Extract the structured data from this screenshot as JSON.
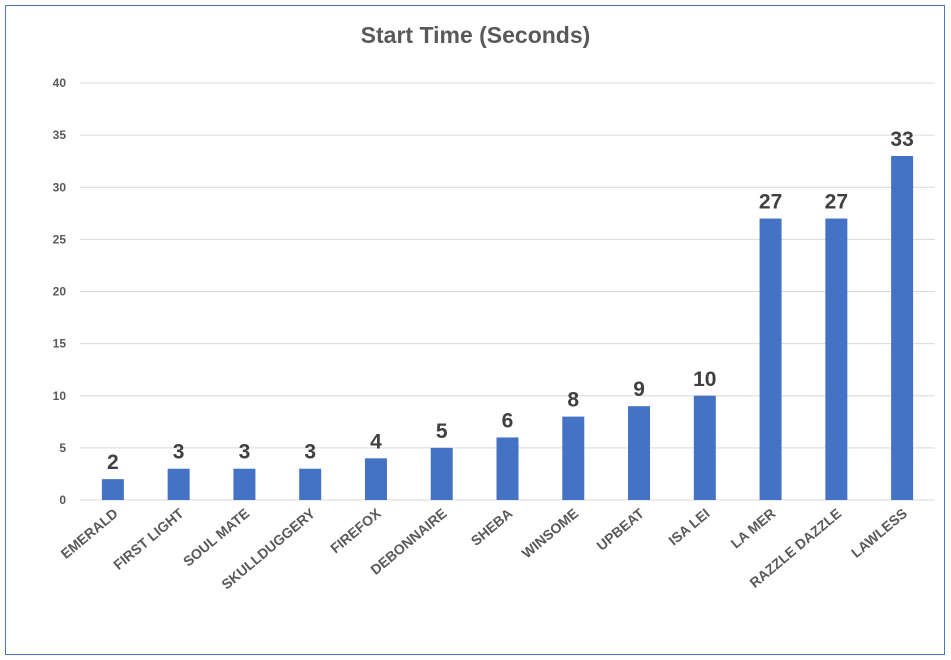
{
  "chart_data": {
    "type": "bar",
    "title": "Start Time (Seconds)",
    "xlabel": "",
    "ylabel": "",
    "ylim": [
      0,
      40
    ],
    "yticks": [
      0,
      5,
      10,
      15,
      20,
      25,
      30,
      35,
      40
    ],
    "grid": true,
    "categories": [
      "EMERALD",
      "FIRST LIGHT",
      "SOUL MATE",
      "SKULLDUGGERY",
      "FIREFOX",
      "DEBONNAIRE",
      "SHEBA",
      "WINSOME",
      "UPBEAT",
      "ISA LEI",
      "LA MER",
      "RAZZLE DAZZLE",
      "LAWLESS"
    ],
    "values": [
      2,
      3,
      3,
      3,
      4,
      5,
      6,
      8,
      9,
      10,
      27,
      27,
      33
    ],
    "bar_color": "#4472c4",
    "gridline_color": "#d9d9d9"
  }
}
